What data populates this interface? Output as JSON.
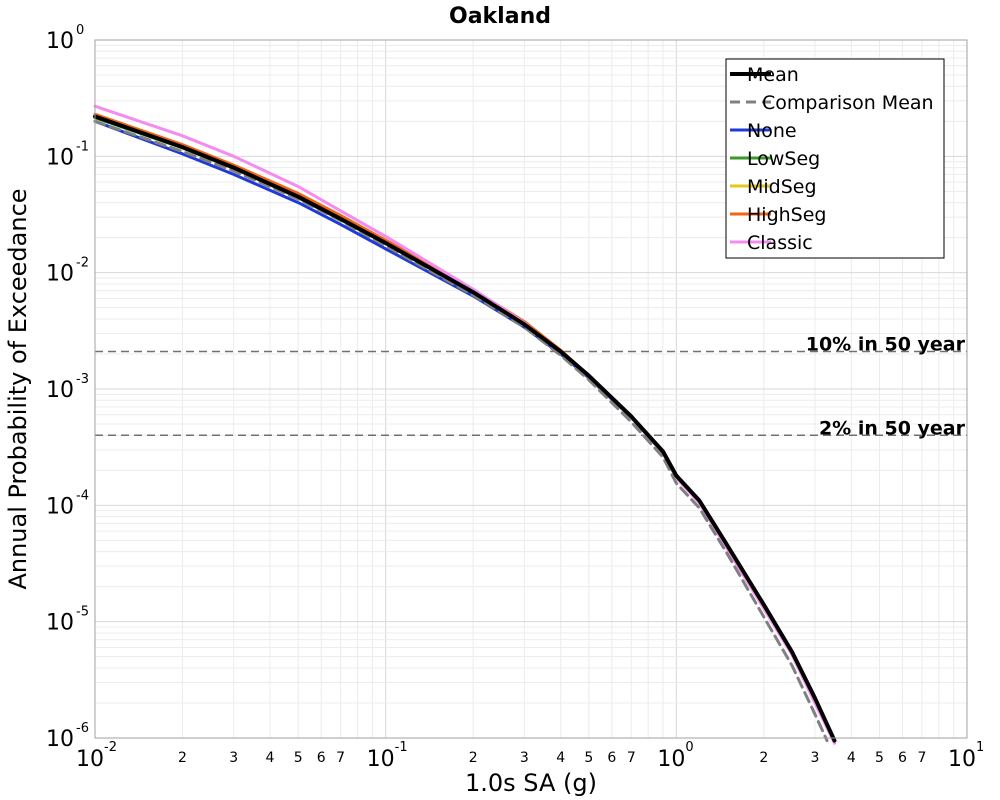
{
  "chart_data": {
    "type": "line",
    "title": "Oakland",
    "xlabel": "1.0s SA (g)",
    "ylabel": "Annual Probability of Exceedance",
    "x_scale": "log",
    "y_scale": "log",
    "xlim": [
      0.01,
      10
    ],
    "ylim": [
      1e-06,
      1
    ],
    "grid": true,
    "legend_placement": "top-right",
    "x_major_ticks": [
      {
        "base": "10",
        "exp": "-2"
      },
      {
        "base": "10",
        "exp": "-1"
      },
      {
        "base": "10",
        "exp": "0"
      },
      {
        "base": "10",
        "exp": "1"
      }
    ],
    "y_major_ticks": [
      {
        "base": "10",
        "exp": "0"
      },
      {
        "base": "10",
        "exp": "-1"
      },
      {
        "base": "10",
        "exp": "-2"
      },
      {
        "base": "10",
        "exp": "-3"
      },
      {
        "base": "10",
        "exp": "-4"
      },
      {
        "base": "10",
        "exp": "-5"
      },
      {
        "base": "10",
        "exp": "-6"
      }
    ],
    "x_minor_tick_labels": [
      "2",
      "3",
      "4",
      "5",
      "6",
      "7"
    ],
    "reference_lines": [
      {
        "label": "10% in 50 year",
        "y": 0.0021
      },
      {
        "label": "2% in 50 year",
        "y": 0.0004
      }
    ],
    "series": [
      {
        "name": "Mean",
        "color": "#000000",
        "style": "solid",
        "width": 4,
        "x": [
          0.01,
          0.02,
          0.03,
          0.05,
          0.07,
          0.1,
          0.2,
          0.3,
          0.4,
          0.5,
          0.7,
          0.9,
          1.0,
          1.2,
          1.5,
          2.0,
          2.5,
          3.0,
          3.5
        ],
        "y": [
          0.22,
          0.12,
          0.08,
          0.045,
          0.029,
          0.018,
          0.0068,
          0.0036,
          0.0021,
          0.0013,
          0.00058,
          0.00029,
          0.00018,
          0.00011,
          4.5e-05,
          1.4e-05,
          5.5e-06,
          2.2e-06,
          9.5e-07
        ]
      },
      {
        "name": "Comparison Mean",
        "color": "#808080",
        "style": "dashed",
        "width": 3,
        "x": [
          0.01,
          0.02,
          0.03,
          0.05,
          0.07,
          0.1,
          0.2,
          0.3,
          0.4,
          0.5,
          0.7,
          0.9,
          1.0,
          1.2,
          1.5,
          2.0,
          2.5,
          3.0,
          3.3
        ],
        "y": [
          0.2,
          0.11,
          0.075,
          0.043,
          0.028,
          0.017,
          0.0064,
          0.0034,
          0.00195,
          0.0012,
          0.00052,
          0.00026,
          0.000155,
          9.5e-05,
          3.8e-05,
          1.1e-05,
          4.2e-06,
          1.6e-06,
          9.5e-07
        ]
      },
      {
        "name": "None",
        "color": "#1f3ad9",
        "style": "solid",
        "width": 3,
        "x": [
          0.01,
          0.02,
          0.03,
          0.05,
          0.07,
          0.1,
          0.2,
          0.3,
          0.4,
          0.5,
          0.7,
          0.9,
          1.0,
          1.2,
          1.5,
          2.0,
          2.5,
          3.0,
          3.5
        ],
        "y": [
          0.2,
          0.105,
          0.07,
          0.04,
          0.026,
          0.016,
          0.0063,
          0.0034,
          0.002,
          0.00125,
          0.00057,
          0.00029,
          0.000175,
          0.000108,
          4.4e-05,
          1.38e-05,
          5.5e-06,
          2.2e-06,
          9.5e-07
        ]
      },
      {
        "name": "LowSeg",
        "color": "#3a9a2a",
        "style": "solid",
        "width": 3,
        "x": [
          0.01,
          0.02,
          0.03,
          0.05,
          0.07,
          0.1,
          0.2,
          0.3,
          0.4,
          0.5,
          0.7,
          0.9,
          1.0,
          1.2,
          1.5,
          2.0,
          2.5,
          3.0,
          3.5
        ],
        "y": [
          0.215,
          0.118,
          0.079,
          0.044,
          0.0285,
          0.0178,
          0.0067,
          0.0036,
          0.0021,
          0.0013,
          0.00058,
          0.00029,
          0.00018,
          0.00011,
          4.5e-05,
          1.4e-05,
          5.5e-06,
          2.2e-06,
          9.5e-07
        ]
      },
      {
        "name": "MidSeg",
        "color": "#e5c81a",
        "style": "solid",
        "width": 3,
        "x": [
          0.01,
          0.02,
          0.03,
          0.05,
          0.07,
          0.1,
          0.2,
          0.3,
          0.4,
          0.5,
          0.7,
          0.9,
          1.0,
          1.2,
          1.5,
          2.0,
          2.5,
          3.0,
          3.5
        ],
        "y": [
          0.222,
          0.122,
          0.081,
          0.046,
          0.0295,
          0.0183,
          0.0069,
          0.0037,
          0.00212,
          0.0013,
          0.00058,
          0.00029,
          0.00018,
          0.00011,
          4.5e-05,
          1.4e-05,
          5.5e-06,
          2.2e-06,
          9.5e-07
        ]
      },
      {
        "name": "HighSeg",
        "color": "#f06414",
        "style": "solid",
        "width": 3,
        "x": [
          0.01,
          0.02,
          0.03,
          0.05,
          0.07,
          0.1,
          0.2,
          0.3,
          0.4,
          0.5,
          0.7,
          0.9,
          1.0,
          1.2,
          1.5,
          2.0,
          2.5,
          3.0,
          3.5
        ],
        "y": [
          0.23,
          0.126,
          0.084,
          0.048,
          0.031,
          0.019,
          0.0071,
          0.0038,
          0.00215,
          0.0013,
          0.00058,
          0.00029,
          0.00018,
          0.00011,
          4.5e-05,
          1.4e-05,
          5.5e-06,
          2.2e-06,
          9.5e-07
        ]
      },
      {
        "name": "Classic",
        "color": "#f48cf0",
        "style": "solid",
        "width": 3,
        "x": [
          0.01,
          0.02,
          0.03,
          0.05,
          0.07,
          0.1,
          0.2,
          0.3,
          0.4,
          0.5,
          0.7,
          0.9,
          1.0,
          1.2,
          1.5,
          2.0,
          2.5,
          3.0,
          3.5
        ],
        "y": [
          0.27,
          0.15,
          0.1,
          0.055,
          0.034,
          0.0205,
          0.0072,
          0.0037,
          0.00208,
          0.00128,
          0.00057,
          0.00028,
          0.000172,
          0.000105,
          4.2e-05,
          1.3e-05,
          5.2e-06,
          2e-06,
          9e-07
        ]
      }
    ]
  }
}
